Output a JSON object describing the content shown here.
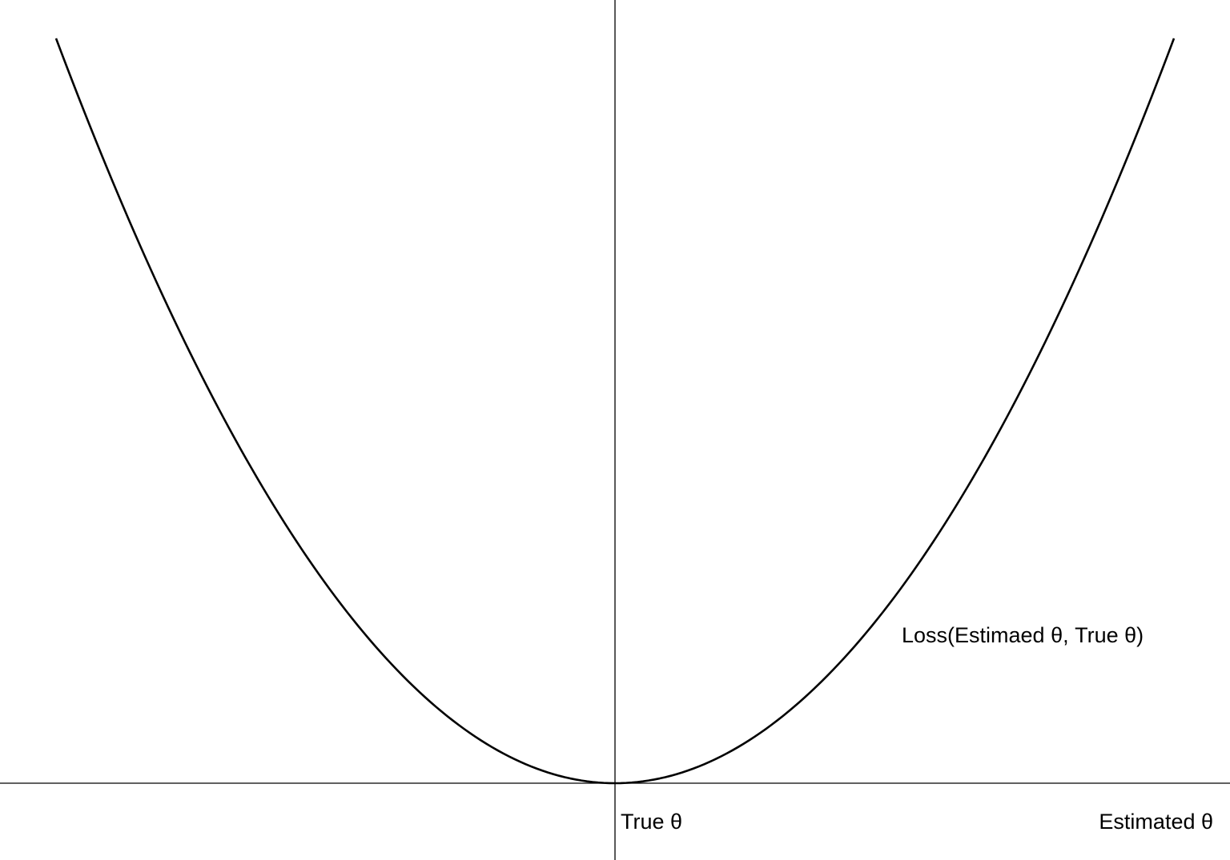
{
  "chart_data": {
    "type": "line",
    "title": "",
    "xlabel": "Estimated θ",
    "ylabel": "",
    "center_label": "True θ",
    "curve_label": "Loss(Estimaed θ, True θ)",
    "xlim": [
      -1,
      1
    ],
    "ylim": [
      0,
      1
    ],
    "grid": false,
    "legend": "none",
    "series": [
      {
        "values": [
          {
            "x": -1.0,
            "y": 1.0
          },
          {
            "x": -0.9,
            "y": 0.81
          },
          {
            "x": -0.8,
            "y": 0.64
          },
          {
            "x": -0.7,
            "y": 0.49
          },
          {
            "x": -0.6,
            "y": 0.36
          },
          {
            "x": -0.5,
            "y": 0.25
          },
          {
            "x": -0.4,
            "y": 0.16
          },
          {
            "x": -0.3,
            "y": 0.09
          },
          {
            "x": -0.2,
            "y": 0.04
          },
          {
            "x": -0.1,
            "y": 0.01
          },
          {
            "x": 0.0,
            "y": 0.0
          },
          {
            "x": 0.1,
            "y": 0.01
          },
          {
            "x": 0.2,
            "y": 0.04
          },
          {
            "x": 0.3,
            "y": 0.09
          },
          {
            "x": 0.4,
            "y": 0.16
          },
          {
            "x": 0.5,
            "y": 0.25
          },
          {
            "x": 0.6,
            "y": 0.36
          },
          {
            "x": 0.7,
            "y": 0.49
          },
          {
            "x": 0.8,
            "y": 0.64
          },
          {
            "x": 0.9,
            "y": 0.81
          },
          {
            "x": 1.0,
            "y": 1.0
          }
        ]
      }
    ],
    "colors": {
      "curve": "#000000",
      "axes": "#000000"
    }
  }
}
